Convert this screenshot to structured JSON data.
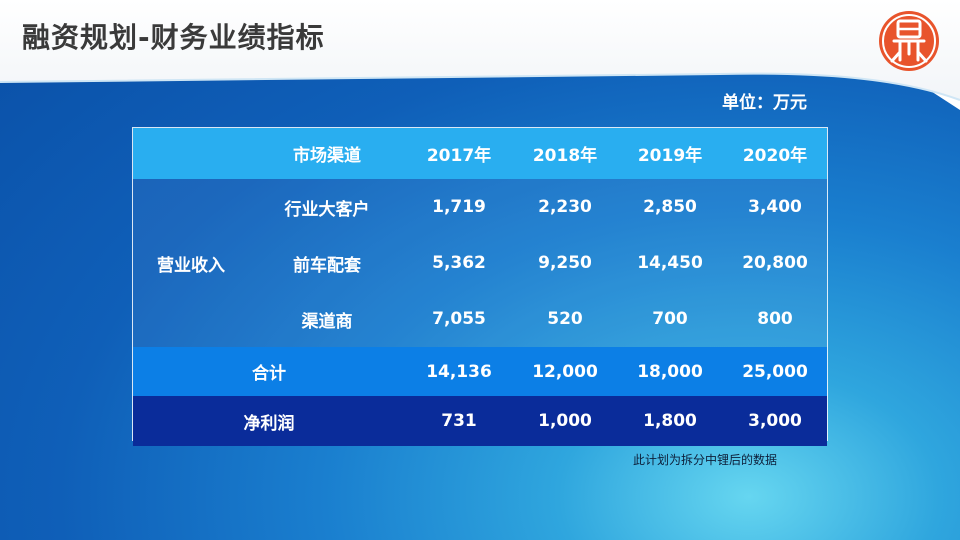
{
  "title": "融资规划-财务业绩指标",
  "unit_label": "单位：万元",
  "logo": {
    "icon": "seal-logo-icon",
    "color": "#e8542c"
  },
  "table": {
    "header": {
      "channel_label": "市场渠道",
      "years": [
        "2017年",
        "2018年",
        "2019年",
        "2020年"
      ]
    },
    "revenue_group_label": "营业收入",
    "revenue_rows": [
      {
        "label": "行业大客户",
        "values": [
          "1,719",
          "2,230",
          "2,850",
          "3,400"
        ]
      },
      {
        "label": "前车配套",
        "values": [
          "5,362",
          "9,250",
          "14,450",
          "20,800"
        ]
      },
      {
        "label": "渠道商",
        "values": [
          "7,055",
          "520",
          "700",
          "800"
        ]
      }
    ],
    "total": {
      "label": "合计",
      "values": [
        "14,136",
        "12,000",
        "18,000",
        "25,000"
      ]
    },
    "net_profit": {
      "label": "净利润",
      "values": [
        "731",
        "1,000",
        "1,800",
        "3,000"
      ]
    }
  },
  "footnote": "此计划为拆分中锂后的数据",
  "colors": {
    "header_row": "#29aef0",
    "total_row": "#0c7fe6",
    "profit_row": "#0a2c9a",
    "title_text": "#3a3a3a"
  }
}
